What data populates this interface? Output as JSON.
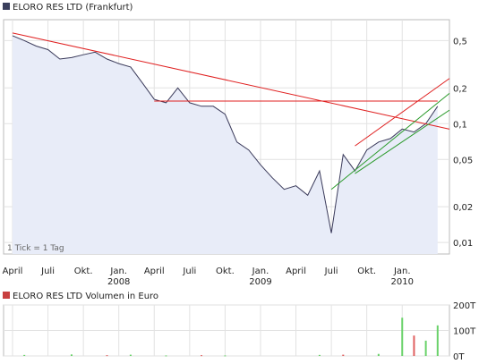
{
  "chart_data": [
    {
      "type": "line",
      "title": "ELORO RES LTD (Frankfurt)",
      "y_scale": "log",
      "ylim": [
        0.008,
        0.75
      ],
      "y_ticks": [
        "0,5",
        "0,2",
        "0,1",
        "0,05",
        "0,02",
        "0,01"
      ],
      "y_tick_values": [
        0.5,
        0.2,
        0.1,
        0.05,
        0.02,
        0.01
      ],
      "x_ticks_top": [
        "April",
        "Juli",
        "Okt.",
        "Jan.",
        "April",
        "Juli",
        "Okt.",
        "Jan.",
        "April",
        "Juli",
        "Okt.",
        "Jan."
      ],
      "x_ticks_bottom": [
        "2008",
        "2009",
        "2010"
      ],
      "x_range": [
        "2007-04",
        "2010-05"
      ],
      "annotation": "1 Tick = 1 Tag",
      "series": [
        {
          "color": "#3a3a5a",
          "points": [
            [
              "2007-04",
              0.55
            ],
            [
              "2007-05",
              0.5
            ],
            [
              "2007-06",
              0.45
            ],
            [
              "2007-07",
              0.42
            ],
            [
              "2007-08",
              0.35
            ],
            [
              "2007-09",
              0.36
            ],
            [
              "2007-10",
              0.38
            ],
            [
              "2007-11",
              0.4
            ],
            [
              "2007-12",
              0.35
            ],
            [
              "2008-01",
              0.32
            ],
            [
              "2008-02",
              0.3
            ],
            [
              "2008-03",
              0.22
            ],
            [
              "2008-04",
              0.16
            ],
            [
              "2008-05",
              0.15
            ],
            [
              "2008-06",
              0.2
            ],
            [
              "2008-07",
              0.15
            ],
            [
              "2008-08",
              0.14
            ],
            [
              "2008-09",
              0.14
            ],
            [
              "2008-10",
              0.12
            ],
            [
              "2008-11",
              0.07
            ],
            [
              "2008-12",
              0.06
            ],
            [
              "2009-01",
              0.045
            ],
            [
              "2009-02",
              0.035
            ],
            [
              "2009-03",
              0.028
            ],
            [
              "2009-04",
              0.03
            ],
            [
              "2009-05",
              0.025
            ],
            [
              "2009-06",
              0.04
            ],
            [
              "2009-07",
              0.012
            ],
            [
              "2009-08",
              0.055
            ],
            [
              "2009-09",
              0.04
            ],
            [
              "2009-10",
              0.06
            ],
            [
              "2009-11",
              0.07
            ],
            [
              "2009-12",
              0.075
            ],
            [
              "2010-01",
              0.09
            ],
            [
              "2010-02",
              0.085
            ],
            [
              "2010-03",
              0.1
            ],
            [
              "2010-04",
              0.14
            ]
          ]
        }
      ],
      "trendlines": [
        {
          "color": "#e02020",
          "from": [
            "2007-04",
            0.58
          ],
          "to": [
            "2010-05",
            0.09
          ]
        },
        {
          "color": "#e02020",
          "from": [
            "2008-04",
            0.155
          ],
          "to": [
            "2010-04",
            0.155
          ]
        },
        {
          "color": "#e02020",
          "from": [
            "2009-09",
            0.065
          ],
          "to": [
            "2010-05",
            0.24
          ]
        },
        {
          "color": "#2a9a2a",
          "from": [
            "2009-07",
            0.028
          ],
          "to": [
            "2010-05",
            0.18
          ]
        },
        {
          "color": "#2a9a2a",
          "from": [
            "2009-09",
            0.038
          ],
          "to": [
            "2010-05",
            0.13
          ]
        }
      ],
      "fill_color": "#e8ecf8",
      "grid": true
    },
    {
      "type": "bar",
      "title": "ELORO RES LTD Volumen in Euro",
      "y_ticks": [
        "200T",
        "100T",
        "0T"
      ],
      "y_tick_values": [
        200000,
        100000,
        0
      ],
      "ylim": [
        0,
        200000
      ],
      "bar_color": "#6ad26a",
      "bar_color_alt": "#e06060",
      "bars": [
        [
          "2007-05",
          4000
        ],
        [
          "2007-09",
          6000
        ],
        [
          "2007-12",
          3000
        ],
        [
          "2008-02",
          5000
        ],
        [
          "2008-05",
          2000
        ],
        [
          "2008-08",
          3000
        ],
        [
          "2008-10",
          2000
        ],
        [
          "2009-06",
          4000
        ],
        [
          "2009-08",
          5000
        ],
        [
          "2009-11",
          8000
        ],
        [
          "2010-01",
          150000
        ],
        [
          "2010-02",
          80000
        ],
        [
          "2010-03",
          60000
        ],
        [
          "2010-04",
          120000
        ]
      ]
    }
  ]
}
